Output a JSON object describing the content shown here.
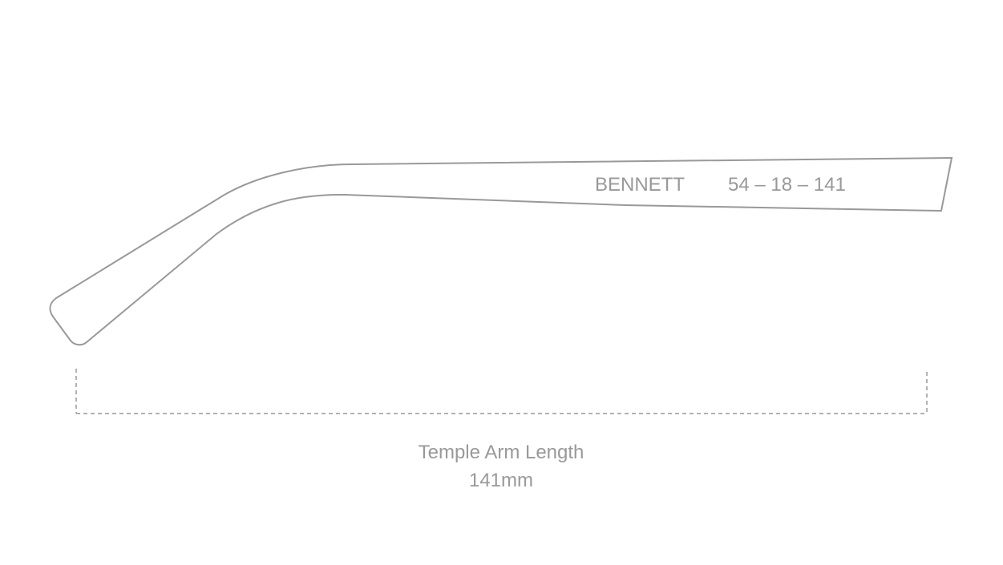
{
  "temple_arm": {
    "model": "BENNETT",
    "size": "54 – 18 – 141"
  },
  "measurement": {
    "label": "Temple Arm Length",
    "value": "141mm"
  }
}
